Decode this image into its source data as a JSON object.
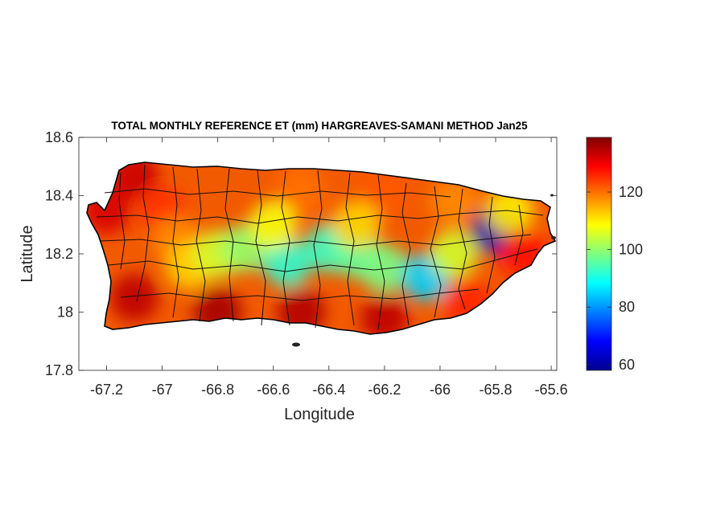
{
  "chart_data": {
    "type": "heatmap",
    "title": "TOTAL MONTHLY REFERENCE ET (mm) HARGREAVES-SAMANI METHOD Jan25",
    "xlabel": "Longitude",
    "ylabel": "Latitude",
    "xlim": [
      -67.3,
      -65.58
    ],
    "ylim": [
      17.8,
      18.6
    ],
    "xticks": [
      -67.2,
      -67,
      -66.8,
      -66.6,
      -66.4,
      -66.2,
      -66,
      -65.8,
      -65.6
    ],
    "yticks": [
      17.8,
      18,
      18.2,
      18.4,
      18.6
    ],
    "colorbar": {
      "colormap": "jet",
      "range": [
        58,
        139
      ],
      "ticks": [
        60,
        80,
        100,
        120
      ]
    },
    "grid": false,
    "field_samples": [
      {
        "lon": -67.2,
        "lat": 18.35,
        "value": 132
      },
      {
        "lon": -67.1,
        "lat": 18.47,
        "value": 133
      },
      {
        "lon": -67.0,
        "lat": 18.35,
        "value": 125
      },
      {
        "lon": -66.95,
        "lat": 18.25,
        "value": 118
      },
      {
        "lon": -66.9,
        "lat": 18.16,
        "value": 112
      },
      {
        "lon": -66.8,
        "lat": 18.2,
        "value": 105
      },
      {
        "lon": -66.7,
        "lat": 18.22,
        "value": 100
      },
      {
        "lon": -66.55,
        "lat": 18.17,
        "value": 92
      },
      {
        "lon": -66.4,
        "lat": 18.22,
        "value": 93
      },
      {
        "lon": -66.3,
        "lat": 18.2,
        "value": 96
      },
      {
        "lon": -66.2,
        "lat": 18.15,
        "value": 98
      },
      {
        "lon": -66.05,
        "lat": 18.12,
        "value": 85
      },
      {
        "lon": -65.95,
        "lat": 18.2,
        "value": 105
      },
      {
        "lon": -65.8,
        "lat": 18.28,
        "value": 62
      },
      {
        "lon": -65.75,
        "lat": 18.35,
        "value": 110
      },
      {
        "lon": -66.5,
        "lat": 18.42,
        "value": 120
      },
      {
        "lon": -66.2,
        "lat": 18.42,
        "value": 122
      },
      {
        "lon": -65.95,
        "lat": 18.38,
        "value": 118
      },
      {
        "lon": -65.7,
        "lat": 18.2,
        "value": 128
      },
      {
        "lon": -65.9,
        "lat": 18.03,
        "value": 126
      },
      {
        "lon": -66.2,
        "lat": 17.98,
        "value": 134
      },
      {
        "lon": -66.5,
        "lat": 18.0,
        "value": 135
      },
      {
        "lon": -66.8,
        "lat": 18.0,
        "value": 136
      },
      {
        "lon": -67.1,
        "lat": 18.05,
        "value": 134
      },
      {
        "lon": -66.6,
        "lat": 18.3,
        "value": 108
      },
      {
        "lon": -66.3,
        "lat": 18.3,
        "value": 112
      }
    ]
  }
}
